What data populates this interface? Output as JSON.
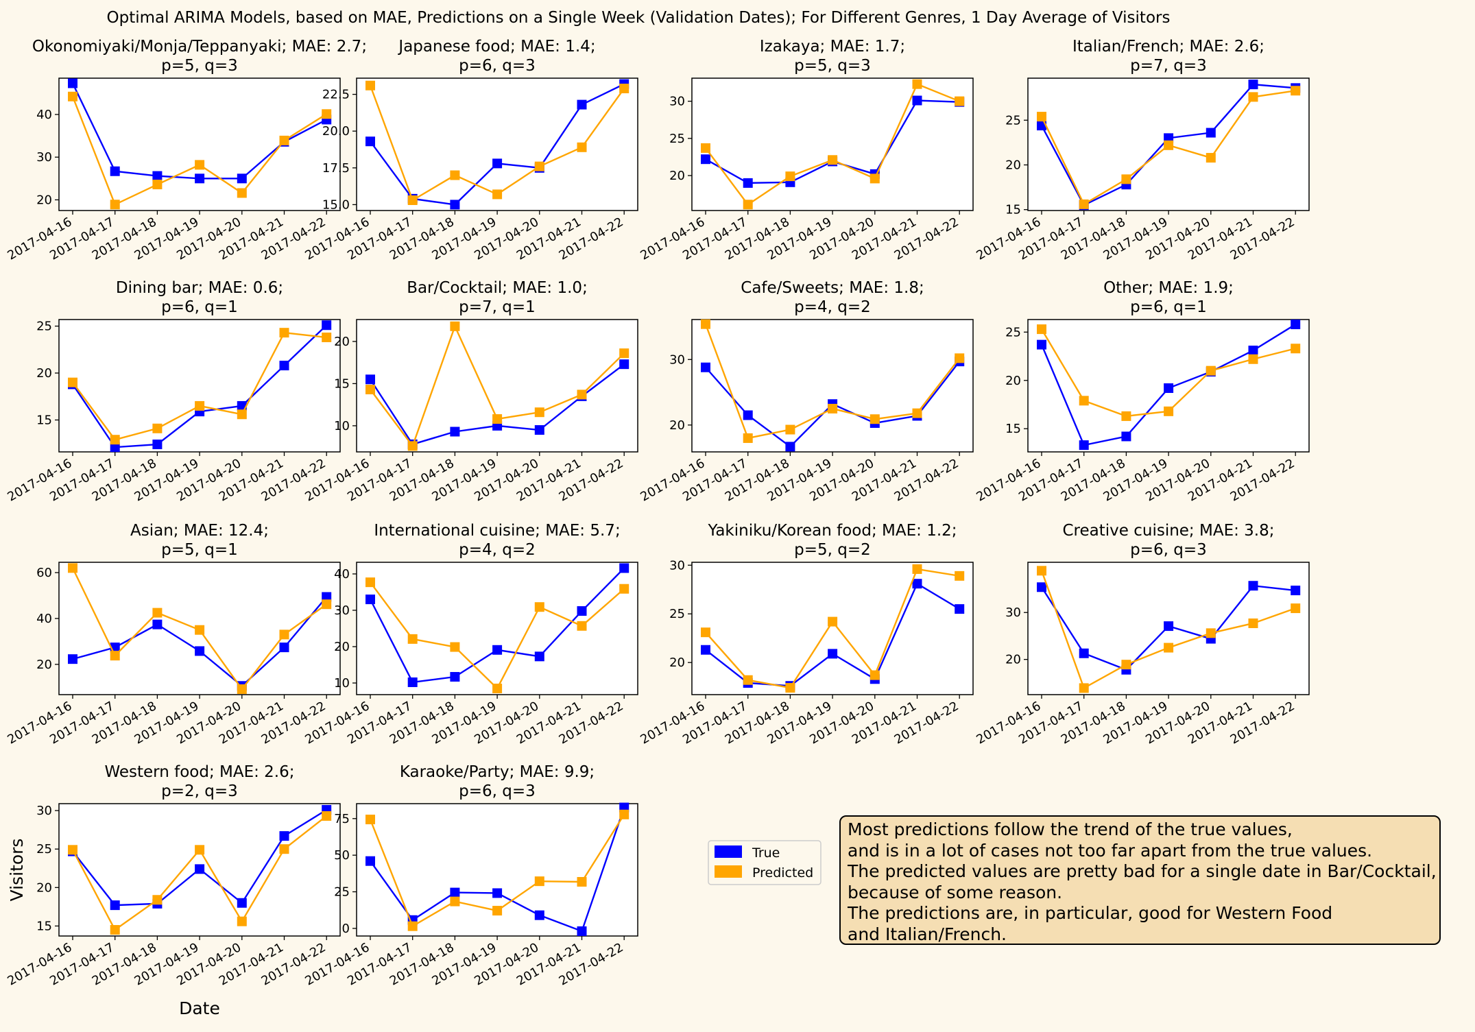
{
  "page": {
    "background": "#fdf8ec",
    "suptitle": "Optimal ARIMA Models, based on MAE, Predictions on a Single Week (Validation Dates); For Different Genres, 1 Day Average of Visitors"
  },
  "legend": {
    "placement": "right of Karaoke/Party panel",
    "entries": [
      {
        "label": "True",
        "color": "#0000ff"
      },
      {
        "label": "Predicted",
        "color": "#ffa500"
      }
    ]
  },
  "note": {
    "lines": [
      "Most predictions follow the trend of the true values,",
      "and is in a lot of cases not too far apart from the true values.",
      "The predicted values are pretty bad for a single date in Bar/Cocktail,",
      "because of some reason.",
      "The predictions are, in particular, good for Western Food",
      "and Italian/French."
    ],
    "background": "#f5deb3"
  },
  "chart_data": [
    {
      "type": "line",
      "title": "Okonomiyaki/Monja/Teppanyaki; MAE: 2.7;",
      "subtitle": "p=5, q=3",
      "x": [
        "2017-04-16",
        "2017-04-17",
        "2017-04-18",
        "2017-04-19",
        "2017-04-20",
        "2017-04-21",
        "2017-04-22"
      ],
      "ylim": [
        17.5,
        48.5
      ],
      "yticks": [
        20,
        30,
        40
      ],
      "yticklabels": [
        "20",
        "30",
        "40"
      ],
      "series": [
        {
          "name": "True",
          "color": "#0000ff",
          "values": [
            47.3,
            26.7,
            25.6,
            25.0,
            25.0,
            33.6,
            38.8
          ]
        },
        {
          "name": "Predicted",
          "color": "#ffa500",
          "values": [
            44.2,
            18.9,
            23.6,
            28.2,
            21.6,
            33.9,
            40.1
          ]
        }
      ]
    },
    {
      "type": "line",
      "title": "Japanese food; MAE: 1.4;",
      "subtitle": "p=6, q=3",
      "x": [
        "2017-04-16",
        "2017-04-17",
        "2017-04-18",
        "2017-04-19",
        "2017-04-20",
        "2017-04-21",
        "2017-04-22"
      ],
      "ylim": [
        14.6,
        23.6
      ],
      "yticks": [
        15,
        17.5,
        20,
        22.5
      ],
      "yticklabels": [
        "15.0",
        "17.5",
        "20.0",
        "22.5"
      ],
      "series": [
        {
          "name": "True",
          "color": "#0000ff",
          "values": [
            19.3,
            15.4,
            15.0,
            17.8,
            17.5,
            21.8,
            23.2
          ]
        },
        {
          "name": "Predicted",
          "color": "#ffa500",
          "values": [
            23.1,
            15.3,
            17.0,
            15.7,
            17.6,
            18.9,
            22.9
          ]
        }
      ]
    },
    {
      "type": "line",
      "title": "Izakaya; MAE: 1.7;",
      "subtitle": "p=5, q=3",
      "x": [
        "2017-04-16",
        "2017-04-17",
        "2017-04-18",
        "2017-04-19",
        "2017-04-20",
        "2017-04-21",
        "2017-04-22"
      ],
      "ylim": [
        15.3,
        33.1
      ],
      "yticks": [
        20,
        25,
        30
      ],
      "yticklabels": [
        "20",
        "25",
        "30"
      ],
      "series": [
        {
          "name": "True",
          "color": "#0000ff",
          "values": [
            22.2,
            19.0,
            19.1,
            21.9,
            20.2,
            30.1,
            29.9
          ]
        },
        {
          "name": "Predicted",
          "color": "#ffa500",
          "values": [
            23.7,
            16.1,
            19.9,
            22.1,
            19.6,
            32.3,
            30.0
          ]
        }
      ]
    },
    {
      "type": "line",
      "title": "Italian/French; MAE: 2.6;",
      "subtitle": "p=7, q=3",
      "x": [
        "2017-04-16",
        "2017-04-17",
        "2017-04-18",
        "2017-04-19",
        "2017-04-20",
        "2017-04-21",
        "2017-04-22"
      ],
      "ylim": [
        14.9,
        29.7
      ],
      "yticks": [
        15,
        20,
        25
      ],
      "yticklabels": [
        "15",
        "20",
        "25"
      ],
      "series": [
        {
          "name": "True",
          "color": "#0000ff",
          "values": [
            24.4,
            15.5,
            17.8,
            23.0,
            23.6,
            29.0,
            28.6
          ]
        },
        {
          "name": "Predicted",
          "color": "#ffa500",
          "values": [
            25.4,
            15.6,
            18.4,
            22.2,
            20.8,
            27.6,
            28.3
          ]
        }
      ]
    },
    {
      "type": "line",
      "title": "Dining bar; MAE: 0.6;",
      "subtitle": "p=6, q=1",
      "x": [
        "2017-04-16",
        "2017-04-17",
        "2017-04-18",
        "2017-04-19",
        "2017-04-20",
        "2017-04-21",
        "2017-04-22"
      ],
      "ylim": [
        11.6,
        25.7
      ],
      "yticks": [
        15,
        20,
        25
      ],
      "yticklabels": [
        "15",
        "20",
        "25"
      ],
      "series": [
        {
          "name": "True",
          "color": "#0000ff",
          "values": [
            18.8,
            12.1,
            12.4,
            15.9,
            16.5,
            20.8,
            25.1
          ]
        },
        {
          "name": "Predicted",
          "color": "#ffa500",
          "values": [
            19.0,
            12.9,
            14.1,
            16.5,
            15.6,
            24.3,
            23.8
          ]
        }
      ]
    },
    {
      "type": "line",
      "title": "Bar/Cocktail; MAE: 1.0;",
      "subtitle": "p=7, q=1",
      "x": [
        "2017-04-16",
        "2017-04-17",
        "2017-04-18",
        "2017-04-19",
        "2017-04-20",
        "2017-04-21",
        "2017-04-22"
      ],
      "ylim": [
        6.9,
        22.6
      ],
      "yticks": [
        10,
        15,
        20
      ],
      "yticklabels": [
        "10",
        "15",
        "20"
      ],
      "series": [
        {
          "name": "True",
          "color": "#0000ff",
          "values": [
            15.5,
            7.8,
            9.3,
            10.0,
            9.5,
            13.5,
            17.3
          ]
        },
        {
          "name": "Predicted",
          "color": "#ffa500",
          "values": [
            14.3,
            7.6,
            21.8,
            10.8,
            11.6,
            13.7,
            18.6
          ]
        }
      ]
    },
    {
      "type": "line",
      "title": "Cafe/Sweets; MAE: 1.8;",
      "subtitle": "p=4, q=2",
      "x": [
        "2017-04-16",
        "2017-04-17",
        "2017-04-18",
        "2017-04-19",
        "2017-04-20",
        "2017-04-21",
        "2017-04-22"
      ],
      "ylim": [
        15.9,
        36.1
      ],
      "yticks": [
        20,
        30
      ],
      "yticklabels": [
        "20",
        "30"
      ],
      "series": [
        {
          "name": "True",
          "color": "#0000ff",
          "values": [
            28.8,
            21.5,
            16.7,
            23.2,
            20.3,
            21.4,
            29.7
          ]
        },
        {
          "name": "Predicted",
          "color": "#ffa500",
          "values": [
            35.4,
            18.0,
            19.3,
            22.5,
            20.9,
            21.8,
            30.2
          ]
        }
      ]
    },
    {
      "type": "line",
      "title": "Other; MAE: 1.9;",
      "subtitle": "p=6, q=1",
      "x": [
        "2017-04-16",
        "2017-04-17",
        "2017-04-18",
        "2017-04-19",
        "2017-04-20",
        "2017-04-21",
        "2017-04-22"
      ],
      "ylim": [
        12.6,
        26.3
      ],
      "yticks": [
        15,
        20,
        25
      ],
      "yticklabels": [
        "15",
        "20",
        "25"
      ],
      "series": [
        {
          "name": "True",
          "color": "#0000ff",
          "values": [
            23.7,
            13.3,
            14.2,
            19.2,
            20.9,
            23.1,
            25.8
          ]
        },
        {
          "name": "Predicted",
          "color": "#ffa500",
          "values": [
            25.3,
            17.9,
            16.3,
            16.8,
            21.0,
            22.2,
            23.3
          ]
        }
      ]
    },
    {
      "type": "line",
      "title": "Asian; MAE: 12.4;",
      "subtitle": "p=5, q=1",
      "x": [
        "2017-04-16",
        "2017-04-17",
        "2017-04-18",
        "2017-04-19",
        "2017-04-20",
        "2017-04-21",
        "2017-04-22"
      ],
      "ylim": [
        6.8,
        64.5
      ],
      "yticks": [
        20,
        40,
        60
      ],
      "yticklabels": [
        "20",
        "40",
        "60"
      ],
      "series": [
        {
          "name": "True",
          "color": "#0000ff",
          "values": [
            22.3,
            27.4,
            37.4,
            25.8,
            10.6,
            27.4,
            49.4
          ]
        },
        {
          "name": "Predicted",
          "color": "#ffa500",
          "values": [
            62.0,
            23.8,
            42.5,
            35.0,
            9.2,
            33.0,
            46.2
          ]
        }
      ]
    },
    {
      "type": "line",
      "title": "International cuisine; MAE: 5.7;",
      "subtitle": "p=4, q=2",
      "x": [
        "2017-04-16",
        "2017-04-17",
        "2017-04-18",
        "2017-04-19",
        "2017-04-20",
        "2017-04-21",
        "2017-04-22"
      ],
      "ylim": [
        6.8,
        43.2
      ],
      "yticks": [
        10,
        20,
        30,
        40
      ],
      "yticklabels": [
        "10",
        "20",
        "30",
        "40"
      ],
      "series": [
        {
          "name": "True",
          "color": "#0000ff",
          "values": [
            33.0,
            10.2,
            11.7,
            19.1,
            17.3,
            29.8,
            41.6
          ]
        },
        {
          "name": "Predicted",
          "color": "#ffa500",
          "values": [
            37.7,
            22.1,
            19.9,
            8.5,
            30.9,
            25.7,
            35.9
          ]
        }
      ]
    },
    {
      "type": "line",
      "title": "Yakiniku/Korean food; MAE: 1.2;",
      "subtitle": "p=5, q=2",
      "x": [
        "2017-04-16",
        "2017-04-17",
        "2017-04-18",
        "2017-04-19",
        "2017-04-20",
        "2017-04-21",
        "2017-04-22"
      ],
      "ylim": [
        16.7,
        30.3
      ],
      "yticks": [
        20,
        25,
        30
      ],
      "yticklabels": [
        "20",
        "25",
        "30"
      ],
      "series": [
        {
          "name": "True",
          "color": "#0000ff",
          "values": [
            21.3,
            17.9,
            17.6,
            20.9,
            18.3,
            28.1,
            25.5
          ]
        },
        {
          "name": "Predicted",
          "color": "#ffa500",
          "values": [
            23.1,
            18.2,
            17.4,
            24.2,
            18.7,
            29.6,
            28.9
          ]
        }
      ]
    },
    {
      "type": "line",
      "title": "Creative cuisine; MAE: 3.8;",
      "subtitle": "p=6, q=3",
      "x": [
        "2017-04-16",
        "2017-04-17",
        "2017-04-18",
        "2017-04-19",
        "2017-04-20",
        "2017-04-21",
        "2017-04-22"
      ],
      "ylim": [
        12.5,
        40.7
      ],
      "yticks": [
        20,
        30
      ],
      "yticklabels": [
        "20",
        "30"
      ],
      "series": [
        {
          "name": "True",
          "color": "#0000ff",
          "values": [
            35.4,
            21.3,
            17.8,
            27.1,
            24.4,
            35.7,
            34.7
          ]
        },
        {
          "name": "Predicted",
          "color": "#ffa500",
          "values": [
            38.9,
            13.9,
            18.9,
            22.5,
            25.6,
            27.7,
            30.9
          ]
        }
      ]
    },
    {
      "type": "line",
      "title": "Western food; MAE: 2.6;",
      "subtitle": "p=2, q=3",
      "x": [
        "2017-04-16",
        "2017-04-17",
        "2017-04-18",
        "2017-04-19",
        "2017-04-20",
        "2017-04-21",
        "2017-04-22"
      ],
      "ylim": [
        13.7,
        30.9
      ],
      "yticks": [
        15,
        20,
        25,
        30
      ],
      "yticklabels": [
        "15",
        "20",
        "25",
        "30"
      ],
      "xlabel": "Date",
      "ylabel": "Visitors",
      "series": [
        {
          "name": "True",
          "color": "#0000ff",
          "values": [
            24.7,
            17.7,
            17.9,
            22.4,
            18.0,
            26.7,
            30.1
          ]
        },
        {
          "name": "Predicted",
          "color": "#ffa500",
          "values": [
            24.9,
            14.5,
            18.4,
            24.9,
            15.6,
            25.0,
            29.3
          ]
        }
      ]
    },
    {
      "type": "line",
      "title": "Karaoke/Party; MAE: 9.9;",
      "subtitle": "p=6, q=3",
      "x": [
        "2017-04-16",
        "2017-04-17",
        "2017-04-18",
        "2017-04-19",
        "2017-04-20",
        "2017-04-21",
        "2017-04-22"
      ],
      "ylim": [
        -5.2,
        85.2
      ],
      "yticks": [
        0,
        25,
        50,
        75
      ],
      "yticklabels": [
        "0",
        "25",
        "50",
        "75"
      ],
      "series": [
        {
          "name": "True",
          "color": "#0000ff",
          "values": [
            46.0,
            5.7,
            24.5,
            24.1,
            9.0,
            -1.9,
            82.6
          ]
        },
        {
          "name": "Predicted",
          "color": "#ffa500",
          "values": [
            74.4,
            1.5,
            18.4,
            12.1,
            32.2,
            31.8,
            77.8
          ]
        }
      ]
    }
  ]
}
